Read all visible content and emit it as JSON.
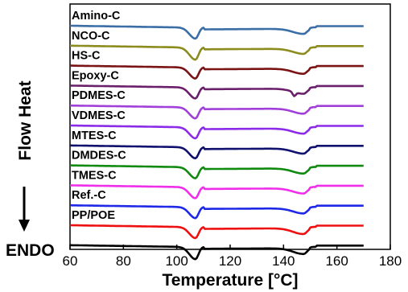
{
  "chart_data": {
    "type": "line",
    "title": "",
    "xlabel": "Temperature [°C]",
    "ylabel": "Flow Heat",
    "endo_label": "ENDO",
    "xlim": [
      60,
      180
    ],
    "x_ticks": [
      60,
      80,
      100,
      120,
      140,
      160,
      180
    ],
    "x_tick_labels": [
      "60",
      "80",
      "100",
      "120",
      "140",
      "160",
      "180"
    ],
    "grid": false,
    "legend": "inline-labels",
    "series": [
      {
        "name": "Amino-C",
        "color": "#3a6ea5",
        "offset": 0,
        "dip1": 1.0,
        "dip2": 0.8,
        "shoulder": false
      },
      {
        "name": "NCO-C",
        "color": "#8c8c1e",
        "offset": 1,
        "dip1": 1.1,
        "dip2": 0.8,
        "shoulder": false
      },
      {
        "name": "HS-C",
        "color": "#7a1414",
        "offset": 2,
        "dip1": 1.0,
        "dip2": 0.8,
        "shoulder": false
      },
      {
        "name": "Epoxy-C",
        "color": "#6a1f6a",
        "offset": 3,
        "dip1": 1.0,
        "dip2": 0.8,
        "shoulder": true
      },
      {
        "name": "PDMES-C",
        "color": "#a040d8",
        "offset": 4,
        "dip1": 1.0,
        "dip2": 0.8,
        "shoulder": false
      },
      {
        "name": "VDMES-C",
        "color": "#8b2be8",
        "offset": 5,
        "dip1": 1.0,
        "dip2": 0.8,
        "shoulder": false
      },
      {
        "name": "MTES-C",
        "color": "#10106e",
        "offset": 6,
        "dip1": 1.0,
        "dip2": 0.8,
        "shoulder": false
      },
      {
        "name": "DMDES-C",
        "color": "#108a10",
        "offset": 7,
        "dip1": 1.0,
        "dip2": 0.8,
        "shoulder": false
      },
      {
        "name": "TMES-C",
        "color": "#ee2ee8",
        "offset": 8,
        "dip1": 1.0,
        "dip2": 0.8,
        "shoulder": false
      },
      {
        "name": "Ref.-C",
        "color": "#1e28e6",
        "offset": 9,
        "dip1": 1.0,
        "dip2": 0.8,
        "shoulder": false
      },
      {
        "name": "PP/POE",
        "color": "#ee1010",
        "offset": 10,
        "dip1": 1.0,
        "dip2": 0.9,
        "shoulder": false
      },
      {
        "name": "",
        "color": "#000000",
        "offset": 11,
        "dip1": 1.1,
        "dip2": 0.9,
        "shoulder": false
      }
    ]
  }
}
